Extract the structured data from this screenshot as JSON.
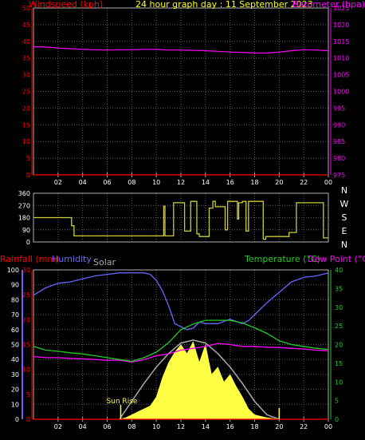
{
  "header": {
    "left_label": "Windspeed (kph)",
    "center_title": "24 hour graph day : 11 September 2023",
    "right_label": "Barometer (hpa)"
  },
  "colors": {
    "background": "#000000",
    "grid": "#5a5a5a",
    "frame": "#b0b0b0",
    "windspeed": "#ff0000",
    "barometer": "#ff00ff",
    "wind_direction": "#cccc33",
    "rainfall": "#ff0000",
    "humidity": "#6666ff",
    "solar": "#ffff44",
    "solar_curve": "#aaaaaa",
    "temperature": "#22cc22",
    "dew_point": "#ff00ff",
    "title": "#ffff00",
    "tick_text": "#ffffff"
  },
  "chart_data": [
    {
      "id": "wind_pressure",
      "type": "line",
      "x_unit": "hour",
      "xlim": [
        0,
        24
      ],
      "x_ticks": [
        "02",
        "04",
        "06",
        "08",
        "10",
        "12",
        "14",
        "16",
        "18",
        "20",
        "22",
        "00"
      ],
      "left_axis": {
        "label": "Windspeed (kph)",
        "ylim": [
          0,
          50
        ],
        "ticks": [
          "0",
          "5",
          "10",
          "15",
          "20",
          "25",
          "30",
          "35",
          "40",
          "45",
          "50"
        ]
      },
      "right_axis": {
        "label": "Barometer (hpa)",
        "ylim": [
          975,
          1025
        ],
        "ticks": [
          "975",
          "980",
          "985",
          "990",
          "995",
          "1000",
          "1005",
          "1010",
          "1015",
          "1020",
          "1025"
        ]
      },
      "series": [
        {
          "name": "Windspeed",
          "axis": "left",
          "color": "#ff0000",
          "x": [
            0,
            24
          ],
          "y": [
            0,
            0
          ]
        },
        {
          "name": "Barometer",
          "axis": "right",
          "color": "#ff00ff",
          "x": [
            0,
            1,
            2,
            3,
            4,
            5,
            6,
            7,
            8,
            9,
            10,
            11,
            12,
            13,
            14,
            15,
            16,
            17,
            18,
            19,
            20,
            21,
            22,
            23,
            24
          ],
          "y": [
            1013.4,
            1013.3,
            1013.0,
            1012.8,
            1012.6,
            1012.5,
            1012.4,
            1012.5,
            1012.5,
            1012.6,
            1012.6,
            1012.4,
            1012.4,
            1012.3,
            1012.2,
            1012.0,
            1011.8,
            1011.7,
            1011.5,
            1011.5,
            1011.8,
            1012.2,
            1012.5,
            1012.4,
            1012.2
          ]
        }
      ]
    },
    {
      "id": "wind_direction",
      "type": "line",
      "x_unit": "hour",
      "xlim": [
        0,
        24
      ],
      "left_axis": {
        "ylim": [
          0,
          360
        ],
        "ticks": [
          "0",
          "90",
          "180",
          "270",
          "360"
        ]
      },
      "right_axis": {
        "ticks": [
          "N",
          "W",
          "S",
          "E",
          "N"
        ]
      },
      "series": [
        {
          "name": "Wind direction",
          "color": "#cccc33",
          "step": true,
          "x": [
            0,
            3.1,
            3.1,
            3.3,
            3.3,
            10.6,
            10.6,
            10.7,
            10.7,
            11.4,
            11.4,
            12.3,
            12.3,
            12.8,
            12.8,
            13.3,
            13.3,
            13.5,
            13.5,
            14.3,
            14.3,
            14.6,
            14.6,
            14.8,
            14.8,
            15.6,
            15.6,
            15.8,
            15.8,
            16.6,
            16.6,
            16.7,
            16.7,
            17.0,
            17.0,
            17.3,
            17.3,
            17.5,
            17.5,
            18.7,
            18.7,
            18.9,
            18.9,
            20.8,
            20.8,
            21.4,
            21.4,
            23.6,
            23.6,
            24
          ],
          "y": [
            180,
            180,
            120,
            120,
            45,
            45,
            265,
            265,
            45,
            45,
            290,
            290,
            80,
            80,
            300,
            300,
            60,
            60,
            40,
            40,
            250,
            250,
            300,
            300,
            260,
            260,
            90,
            90,
            300,
            300,
            170,
            170,
            290,
            290,
            300,
            300,
            80,
            80,
            300,
            300,
            20,
            20,
            40,
            40,
            70,
            70,
            290,
            290,
            30,
            30
          ]
        }
      ]
    },
    {
      "id": "rain_humidity_temperature",
      "type": "line",
      "x_unit": "hour",
      "xlim": [
        0,
        24
      ],
      "x_ticks": [
        "02",
        "04",
        "06",
        "08",
        "10",
        "12",
        "14",
        "16",
        "18",
        "20",
        "22",
        "00"
      ],
      "humidity_axis": {
        "label": "Humidity",
        "ylim": [
          0,
          100
        ],
        "ticks": [
          "0",
          "10",
          "20",
          "30",
          "40",
          "50",
          "60",
          "70",
          "80",
          "90",
          "100"
        ]
      },
      "rainfall_axis": {
        "label": "Rainfall (mm)",
        "ylim": [
          0,
          30
        ],
        "ticks": [
          "0",
          "5",
          "10",
          "15",
          "20",
          "25",
          "30"
        ]
      },
      "temperature_axis": {
        "label": "Temperature (°C)",
        "ylim": [
          0,
          40
        ],
        "ticks": [
          "0",
          "5",
          "10",
          "15",
          "20",
          "25",
          "30",
          "35",
          "40"
        ]
      },
      "dew_point_label": "Dew Point (°C)",
      "solar_label": "Solar",
      "annotations": [
        {
          "text": "Sun Rise",
          "x": 7.1
        }
      ],
      "series": [
        {
          "name": "Humidity",
          "axis": "humidity",
          "color": "#6666ff",
          "x": [
            0,
            1,
            2,
            3,
            4,
            5,
            6,
            7,
            8,
            9,
            9.5,
            10,
            10.5,
            11,
            11.5,
            12,
            12.5,
            13,
            13.5,
            14,
            15,
            16,
            17,
            17.5,
            18,
            19,
            20,
            21,
            22,
            23,
            24
          ],
          "y": [
            83,
            88,
            91,
            92,
            94,
            96,
            97,
            98,
            98,
            98,
            97,
            93,
            86,
            76,
            64,
            62,
            60,
            61,
            65,
            64,
            64,
            67,
            64,
            66,
            70,
            78,
            85,
            92,
            95,
            96,
            98
          ]
        },
        {
          "name": "Temperature",
          "axis": "temperature",
          "color": "#22cc22",
          "x": [
            0,
            1,
            2,
            3,
            4,
            5,
            6,
            7,
            8,
            9,
            10,
            11,
            12,
            13,
            14,
            15,
            16,
            17,
            18,
            19,
            20,
            21,
            22,
            23,
            24
          ],
          "y": [
            19.5,
            18.5,
            18.2,
            17.8,
            17.5,
            17,
            16.5,
            16,
            15.5,
            16.5,
            18,
            20.5,
            24,
            25.5,
            26.5,
            26.5,
            26.5,
            25.8,
            24.5,
            23,
            21,
            20,
            19.5,
            19,
            18.7
          ]
        },
        {
          "name": "Dew Point",
          "axis": "temperature",
          "color": "#ff00ff",
          "x": [
            0,
            1,
            2,
            3,
            4,
            5,
            6,
            7,
            8,
            9,
            10,
            11,
            12,
            13,
            14,
            15,
            16,
            17,
            18,
            19,
            20,
            21,
            22,
            23,
            24
          ],
          "y": [
            16.8,
            16.5,
            16.5,
            16.3,
            16.2,
            16,
            15.8,
            15.8,
            15.3,
            16,
            17,
            17.5,
            18.5,
            19,
            19.5,
            20.3,
            20,
            19.5,
            19.5,
            19.3,
            19.2,
            19,
            18.8,
            18.5,
            18.3
          ]
        },
        {
          "name": "Rainfall",
          "axis": "rainfall",
          "color": "#ff0000",
          "x": [
            0,
            24
          ],
          "y": [
            0,
            0
          ]
        },
        {
          "name": "Solar",
          "axis": "humidity",
          "color": "#ffff44",
          "fill": true,
          "x": [
            7,
            7.5,
            8,
            8.5,
            9,
            9.5,
            10,
            10.5,
            11,
            11.5,
            12,
            12.5,
            13,
            13.5,
            14,
            14.5,
            15,
            15.5,
            16,
            16.5,
            17,
            17.5,
            18,
            18.5,
            19,
            19.5,
            20
          ],
          "y": [
            0,
            1,
            3,
            5,
            7,
            9,
            15,
            28,
            38,
            45,
            50,
            44,
            52,
            38,
            50,
            30,
            35,
            25,
            30,
            22,
            15,
            7,
            3,
            2,
            1,
            0.5,
            0
          ]
        },
        {
          "name": "Solar theoretical",
          "axis": "humidity",
          "color": "#aaaaaa",
          "x": [
            7,
            8,
            9,
            10,
            11,
            12,
            13,
            14,
            15,
            16,
            17,
            18,
            19,
            20
          ],
          "y": [
            0,
            12,
            24,
            35,
            44,
            51,
            53,
            51,
            44,
            35,
            24,
            12,
            3,
            0
          ]
        }
      ]
    }
  ]
}
